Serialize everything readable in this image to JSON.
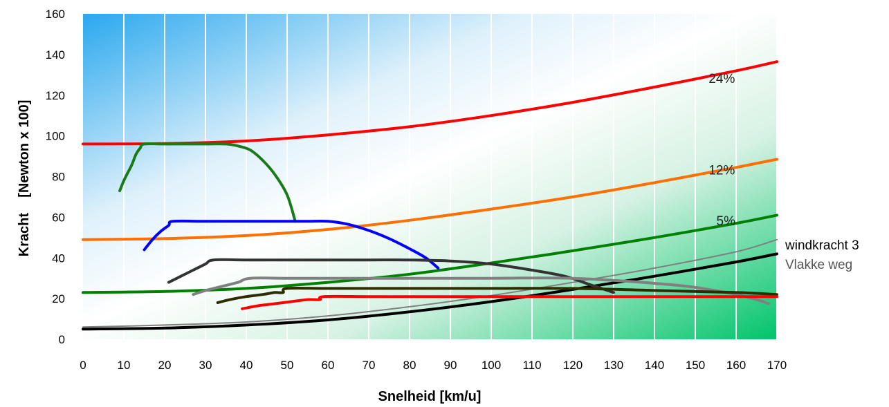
{
  "chart_data": {
    "type": "line",
    "xlabel": "Snelheid [km/u]",
    "ylabel": "Kracht    [Newton x 100]",
    "xlim": [
      0,
      170
    ],
    "ylim": [
      0,
      160
    ],
    "x_ticks": [
      "0",
      "10",
      "20",
      "30",
      "40",
      "50",
      "60",
      "70",
      "80",
      "90",
      "100",
      "110",
      "120",
      "130",
      "140",
      "150",
      "160",
      "170"
    ],
    "y_ticks": [
      "0",
      "20",
      "40",
      "60",
      "80",
      "100",
      "120",
      "140",
      "160"
    ],
    "grid": "vertical",
    "background": "gradient blue (top-left) to green (bottom-right)",
    "resistance_curves": [
      {
        "label": "24%",
        "color": "#ff0000",
        "points": [
          [
            0,
            96
          ],
          [
            20,
            96.2
          ],
          [
            40,
            97.5
          ],
          [
            60,
            100.5
          ],
          [
            80,
            104.5
          ],
          [
            100,
            110
          ],
          [
            120,
            116.5
          ],
          [
            140,
            124
          ],
          [
            160,
            132
          ],
          [
            170,
            136.5
          ]
        ]
      },
      {
        "label": "12%",
        "color": "#ff7000",
        "points": [
          [
            0,
            49
          ],
          [
            20,
            49.5
          ],
          [
            40,
            51
          ],
          [
            60,
            54
          ],
          [
            80,
            58.5
          ],
          [
            100,
            64
          ],
          [
            120,
            70
          ],
          [
            140,
            77
          ],
          [
            160,
            84.5
          ],
          [
            170,
            88.5
          ]
        ]
      },
      {
        "label": "5%",
        "color": "#008000",
        "points": [
          [
            0,
            23
          ],
          [
            20,
            23.5
          ],
          [
            40,
            25
          ],
          [
            60,
            28
          ],
          [
            80,
            32
          ],
          [
            100,
            37.5
          ],
          [
            120,
            43.5
          ],
          [
            140,
            50
          ],
          [
            160,
            57
          ],
          [
            170,
            61
          ]
        ]
      },
      {
        "label": "windkracht 3",
        "color": "#808080",
        "points": [
          [
            0,
            6
          ],
          [
            20,
            7
          ],
          [
            40,
            8.5
          ],
          [
            60,
            11.5
          ],
          [
            80,
            16
          ],
          [
            100,
            21.5
          ],
          [
            120,
            28
          ],
          [
            140,
            35
          ],
          [
            160,
            43
          ],
          [
            170,
            49
          ]
        ]
      },
      {
        "label": "Vlakke weg",
        "color": "#000000",
        "points": [
          [
            0,
            5
          ],
          [
            20,
            5.5
          ],
          [
            40,
            7
          ],
          [
            60,
            9.5
          ],
          [
            80,
            13.5
          ],
          [
            100,
            18.5
          ],
          [
            120,
            24.5
          ],
          [
            140,
            31
          ],
          [
            160,
            38
          ],
          [
            170,
            42
          ]
        ]
      }
    ],
    "gear_curves": [
      {
        "color": "#1a7a1a",
        "points": [
          [
            9,
            73
          ],
          [
            10,
            78
          ],
          [
            11,
            82
          ],
          [
            12,
            86
          ],
          [
            13,
            91
          ],
          [
            14,
            94
          ],
          [
            15,
            96
          ],
          [
            20,
            96
          ],
          [
            30,
            96
          ],
          [
            35,
            96
          ],
          [
            38,
            95
          ],
          [
            41,
            93
          ],
          [
            44,
            88
          ],
          [
            47,
            81
          ],
          [
            50,
            71
          ],
          [
            52,
            58
          ]
        ]
      },
      {
        "color": "#0000ff",
        "points": [
          [
            15,
            44
          ],
          [
            17,
            49
          ],
          [
            19,
            53
          ],
          [
            21,
            56
          ],
          [
            22,
            58
          ],
          [
            30,
            58
          ],
          [
            40,
            58
          ],
          [
            50,
            58
          ],
          [
            55,
            58
          ],
          [
            60,
            58
          ],
          [
            65,
            56.5
          ],
          [
            70,
            53.5
          ],
          [
            75,
            49.5
          ],
          [
            80,
            44.5
          ],
          [
            84,
            40
          ],
          [
            87,
            35
          ]
        ]
      },
      {
        "color": "#333333",
        "points": [
          [
            21,
            28
          ],
          [
            24,
            31
          ],
          [
            27,
            34
          ],
          [
            30,
            37
          ],
          [
            32,
            39
          ],
          [
            40,
            39
          ],
          [
            50,
            39
          ],
          [
            60,
            39
          ],
          [
            70,
            39
          ],
          [
            80,
            39
          ],
          [
            90,
            38.5
          ],
          [
            100,
            37
          ],
          [
            110,
            34
          ],
          [
            118,
            31
          ],
          [
            124,
            27
          ],
          [
            130,
            23
          ]
        ]
      },
      {
        "color": "#808080",
        "points": [
          [
            27,
            22
          ],
          [
            30,
            24
          ],
          [
            34,
            26
          ],
          [
            38,
            28
          ],
          [
            41,
            30
          ],
          [
            50,
            30
          ],
          [
            60,
            30
          ],
          [
            80,
            30
          ],
          [
            100,
            30
          ],
          [
            120,
            30
          ],
          [
            140,
            27.5
          ],
          [
            150,
            25.5
          ],
          [
            160,
            22
          ],
          [
            165,
            19.5
          ],
          [
            168,
            17.5
          ]
        ]
      },
      {
        "color": "#2d2d00",
        "points": [
          [
            33,
            18
          ],
          [
            36,
            19.5
          ],
          [
            40,
            21
          ],
          [
            44,
            22
          ],
          [
            47,
            23
          ],
          [
            49,
            23
          ],
          [
            50,
            25
          ],
          [
            60,
            25
          ],
          [
            80,
            25
          ],
          [
            100,
            25
          ],
          [
            120,
            25
          ],
          [
            140,
            24
          ],
          [
            160,
            23
          ],
          [
            170,
            22
          ]
        ]
      },
      {
        "color": "#ff0000",
        "points": [
          [
            39,
            15
          ],
          [
            43,
            16.5
          ],
          [
            47,
            17.5
          ],
          [
            51,
            18.5
          ],
          [
            55,
            19.5
          ],
          [
            58,
            19.5
          ],
          [
            59,
            21
          ],
          [
            70,
            21
          ],
          [
            90,
            21
          ],
          [
            110,
            21
          ],
          [
            130,
            21
          ],
          [
            150,
            21
          ],
          [
            170,
            21
          ]
        ]
      }
    ],
    "curve_labels": [
      {
        "text": "24%",
        "x": 156.5,
        "y": 126
      },
      {
        "text": "12%",
        "x": 156.5,
        "y": 81
      },
      {
        "text": "5%",
        "x": 157.5,
        "y": 56
      }
    ],
    "side_labels": [
      {
        "text": "windkracht 3",
        "color": "#000000"
      },
      {
        "text": "Vlakke weg",
        "color": "#555555"
      }
    ]
  }
}
